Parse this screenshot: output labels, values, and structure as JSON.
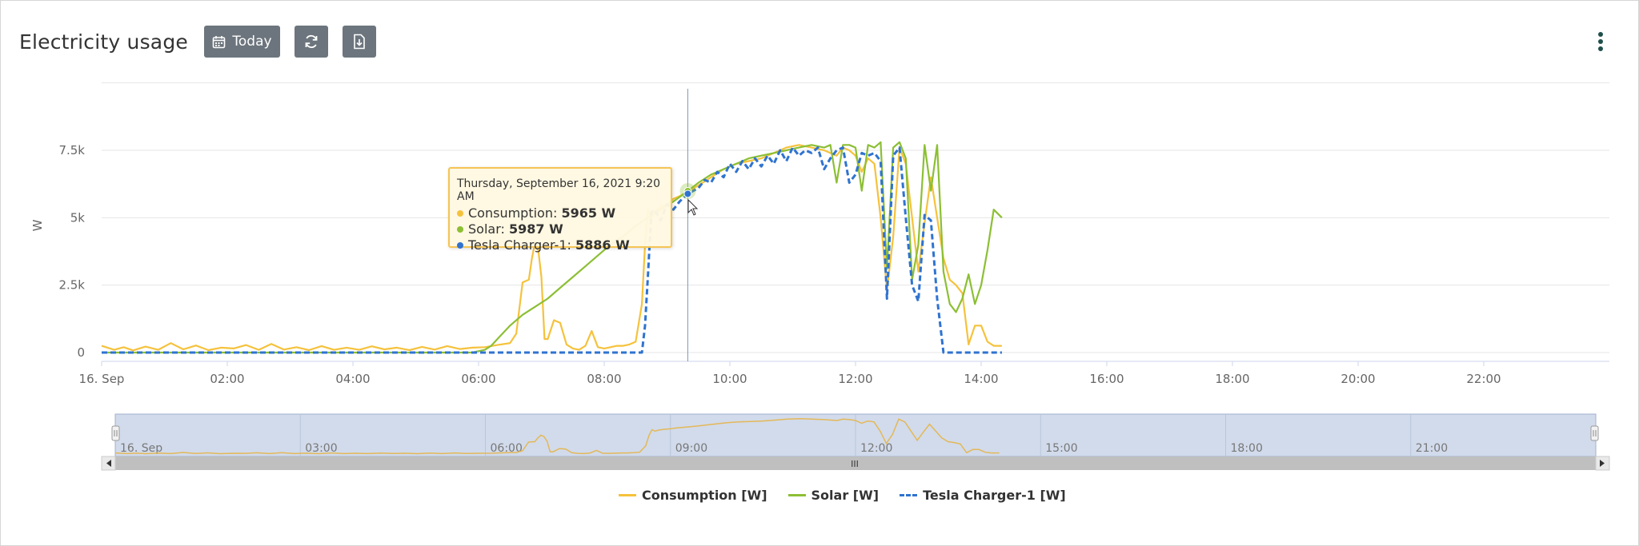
{
  "header": {
    "title": "Electricity usage",
    "today_label": "Today"
  },
  "icons": {
    "calendar": "calendar-icon",
    "refresh": "refresh-icon",
    "download": "download-icon",
    "menu": "kebab-menu-icon"
  },
  "tooltip": {
    "time": "Thursday, September 16, 2021 9:20 AM",
    "rows": [
      {
        "label": "Consumption:",
        "value": "5965 W",
        "color": "#f5c23c"
      },
      {
        "label": "Solar:",
        "value": "5987 W",
        "color": "#8cbf34"
      },
      {
        "label": "Tesla Charger-1:",
        "value": "5886 W",
        "color": "#2f73d0"
      }
    ]
  },
  "navigator": {
    "labels": [
      "16. Sep",
      "03:00",
      "06:00",
      "09:00",
      "12:00",
      "15:00",
      "18:00",
      "21:00"
    ],
    "scroll_handle": "III"
  },
  "legend": [
    {
      "label": "Consumption [W]",
      "color": "#f5c23c",
      "dash": false
    },
    {
      "label": "Solar [W]",
      "color": "#8cbf34",
      "dash": false
    },
    {
      "label": "Tesla Charger-1 [W]",
      "color": "#2f73d0",
      "dash": true
    }
  ],
  "chart_data": {
    "type": "line",
    "title": "Electricity usage",
    "ylabel": "W",
    "ylim": [
      -300,
      10000
    ],
    "xlim": [
      0,
      24
    ],
    "x_ticks": [
      "16. Sep",
      "02:00",
      "04:00",
      "06:00",
      "08:00",
      "10:00",
      "12:00",
      "14:00",
      "16:00",
      "18:00",
      "20:00",
      "22:00"
    ],
    "y_ticks": [
      "0",
      "2.5k",
      "5k",
      "7.5k"
    ],
    "grid": true,
    "legend_position": "bottom",
    "crosshair_x": 9.33,
    "series": [
      {
        "name": "Consumption [W]",
        "color": "#f5c23c",
        "dash": false,
        "x": [
          0,
          0.2,
          0.35,
          0.5,
          0.7,
          0.9,
          1.1,
          1.3,
          1.5,
          1.7,
          1.9,
          2.1,
          2.3,
          2.5,
          2.7,
          2.9,
          3.1,
          3.3,
          3.5,
          3.7,
          3.9,
          4.1,
          4.3,
          4.5,
          4.7,
          4.9,
          5.1,
          5.3,
          5.5,
          5.7,
          5.9,
          6.1,
          6.3,
          6.5,
          6.6,
          6.7,
          6.8,
          6.85,
          6.9,
          6.95,
          7.0,
          7.05,
          7.1,
          7.2,
          7.3,
          7.4,
          7.5,
          7.6,
          7.7,
          7.8,
          7.9,
          8.0,
          8.1,
          8.2,
          8.3,
          8.4,
          8.5,
          8.6,
          8.65,
          8.7,
          8.75,
          8.8,
          8.9,
          9.0,
          9.1,
          9.2,
          9.33,
          9.5,
          9.7,
          9.9,
          10.1,
          10.3,
          10.5,
          10.7,
          10.9,
          11.1,
          11.3,
          11.5,
          11.6,
          11.7,
          11.8,
          11.9,
          12.0,
          12.1,
          12.2,
          12.3,
          12.4,
          12.5,
          12.6,
          12.7,
          12.8,
          12.9,
          13.0,
          13.1,
          13.2,
          13.3,
          13.4,
          13.5,
          13.6,
          13.7,
          13.8,
          13.9,
          14.0,
          14.1,
          14.2,
          14.33
        ],
        "y": [
          250,
          100,
          200,
          80,
          220,
          100,
          350,
          120,
          260,
          90,
          180,
          150,
          280,
          100,
          320,
          110,
          200,
          90,
          240,
          100,
          180,
          100,
          230,
          120,
          180,
          90,
          210,
          110,
          240,
          130,
          180,
          200,
          280,
          350,
          700,
          2600,
          2700,
          3500,
          4100,
          3800,
          2800,
          500,
          500,
          1200,
          1100,
          300,
          150,
          100,
          250,
          800,
          200,
          150,
          200,
          250,
          250,
          300,
          400,
          1800,
          4000,
          5300,
          5000,
          5200,
          5400,
          5500,
          5700,
          5800,
          5965,
          6200,
          6500,
          6800,
          7000,
          7100,
          7200,
          7400,
          7600,
          7700,
          7600,
          7500,
          7400,
          7300,
          7600,
          7500,
          7300,
          6700,
          7200,
          7000,
          5000,
          2300,
          4300,
          7600,
          7000,
          5000,
          3000,
          4800,
          6500,
          5000,
          3500,
          2700,
          2500,
          2200,
          300,
          1000,
          1000,
          400,
          250,
          250
        ]
      },
      {
        "name": "Solar [W]",
        "color": "#8cbf34",
        "dash": false,
        "x": [
          0,
          5.9,
          6.1,
          6.2,
          6.3,
          6.5,
          6.7,
          6.9,
          7.1,
          7.3,
          7.5,
          7.7,
          7.9,
          8.1,
          8.3,
          8.5,
          8.7,
          8.9,
          9.1,
          9.33,
          9.5,
          9.7,
          9.9,
          10.1,
          10.3,
          10.5,
          10.7,
          10.9,
          11.1,
          11.3,
          11.5,
          11.6,
          11.7,
          11.8,
          11.9,
          12.0,
          12.1,
          12.2,
          12.3,
          12.4,
          12.5,
          12.6,
          12.7,
          12.8,
          12.9,
          13.0,
          13.1,
          13.2,
          13.3,
          13.4,
          13.5,
          13.6,
          13.7,
          13.8,
          13.9,
          14.0,
          14.1,
          14.2,
          14.33
        ],
        "y": [
          0,
          0,
          100,
          250,
          500,
          1000,
          1400,
          1700,
          2000,
          2400,
          2800,
          3200,
          3600,
          4000,
          4300,
          4700,
          5000,
          5300,
          5600,
          5987,
          6300,
          6600,
          6800,
          7000,
          7200,
          7300,
          7400,
          7500,
          7600,
          7700,
          7600,
          7700,
          6300,
          7700,
          7700,
          7600,
          6000,
          7700,
          7600,
          7800,
          3100,
          7600,
          7800,
          7200,
          2700,
          4000,
          7700,
          6000,
          7700,
          3000,
          1800,
          1500,
          2000,
          2900,
          1800,
          2500,
          3800,
          5300,
          5000
        ]
      },
      {
        "name": "Tesla Charger-1 [W]",
        "color": "#2f73d0",
        "dash": true,
        "x": [
          0,
          8.5,
          8.6,
          8.65,
          8.7,
          8.75,
          8.8,
          8.9,
          9.0,
          9.1,
          9.2,
          9.33,
          9.5,
          9.6,
          9.7,
          9.8,
          9.9,
          10.0,
          10.1,
          10.2,
          10.3,
          10.4,
          10.5,
          10.6,
          10.7,
          10.8,
          10.9,
          11.0,
          11.1,
          11.2,
          11.3,
          11.4,
          11.5,
          11.6,
          11.7,
          11.8,
          11.9,
          12.0,
          12.1,
          12.2,
          12.3,
          12.4,
          12.5,
          12.6,
          12.7,
          12.8,
          12.9,
          13.0,
          13.1,
          13.2,
          13.3,
          13.4,
          14.33
        ],
        "y": [
          0,
          0,
          0,
          1000,
          3000,
          5200,
          5300,
          4900,
          5500,
          5300,
          5600,
          5886,
          6100,
          6400,
          6300,
          6700,
          6500,
          7000,
          6700,
          7100,
          6800,
          7200,
          6900,
          7300,
          7000,
          7500,
          7100,
          7600,
          7300,
          7500,
          7400,
          7600,
          6800,
          7200,
          7500,
          7600,
          6300,
          6600,
          7400,
          7300,
          7400,
          7100,
          2000,
          7300,
          7600,
          5000,
          2500,
          1900,
          5100,
          4900,
          2000,
          0,
          0
        ]
      }
    ]
  }
}
